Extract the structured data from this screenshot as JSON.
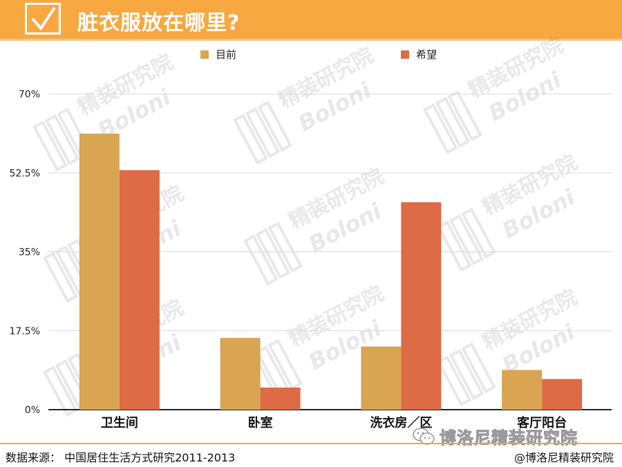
{
  "header": {
    "title": "脏衣服放在哪里?"
  },
  "legend": {
    "items": [
      {
        "label": "目前",
        "color": "#d9a552"
      },
      {
        "label": "希望",
        "color": "#dd6b45"
      }
    ]
  },
  "chart_data": {
    "type": "bar",
    "categories": [
      "卫生间",
      "卧室",
      "洗衣房／区",
      "客厅阳台"
    ],
    "series": [
      {
        "name": "目前",
        "values": [
          61.2,
          15.9,
          14.0,
          8.8
        ],
        "color": "#d9a552"
      },
      {
        "name": "希望",
        "values": [
          53.1,
          4.9,
          46.0,
          6.8
        ],
        "color": "#dd6b45"
      }
    ],
    "ylim": [
      0,
      70
    ],
    "yticks": [
      0,
      17.5,
      35,
      52.5,
      70
    ],
    "ytick_labels": [
      "0%",
      "17.5%",
      "35%",
      "52.5%",
      "70%"
    ],
    "grid": true,
    "legend_position": "top"
  },
  "watermark": {
    "cn": "精装研究院",
    "en": "Boloni"
  },
  "footer": {
    "source": "数据来源：  中国居住生活方式研究2011-2013",
    "credit": "@博洛尼精装研究院",
    "wechat": "博洛尼精装研究院"
  }
}
